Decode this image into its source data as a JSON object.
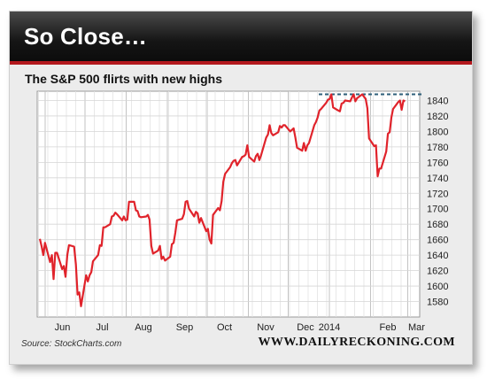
{
  "header": {
    "title": "So Close…"
  },
  "footer": {
    "source": "Source: StockCharts.com",
    "brand": "WWW.DAILYRECKONING.COM"
  },
  "colors": {
    "line": "#e0232b",
    "resistance": "#2e5f7a",
    "accent": "#b3181d"
  },
  "chart_data": {
    "type": "line",
    "title": "The S&P 500 flirts with new highs",
    "xlabel": "",
    "ylabel": "",
    "ylim": [
      1560,
      1852
    ],
    "y_ticks": [
      1580,
      1600,
      1620,
      1640,
      1660,
      1680,
      1700,
      1720,
      1740,
      1760,
      1780,
      1800,
      1820,
      1840
    ],
    "x_ticks": [
      "Jun",
      "Jul",
      "Aug",
      "Sep",
      "Oct",
      "Nov",
      "Dec",
      "2014",
      "Feb",
      "Mar"
    ],
    "grid": true,
    "resistance_level": 1848,
    "series": [
      {
        "name": "",
        "x_start": "2013-05-28",
        "values": [
          1661,
          1652,
          1640,
          1656,
          1631,
          1640,
          1609,
          1643,
          1643,
          1622,
          1626,
          1612,
          1640,
          1653,
          1651,
          1628,
          1589,
          1592,
          1574,
          1614,
          1606,
          1614,
          1618,
          1632,
          1640,
          1653,
          1652,
          1676,
          1676,
          1680,
          1690,
          1691,
          1695,
          1693,
          1685,
          1690,
          1685,
          1686,
          1709,
          1709,
          1698,
          1697,
          1690,
          1689,
          1690,
          1692,
          1686,
          1652,
          1642,
          1646,
          1652,
          1635,
          1638,
          1633,
          1638,
          1654,
          1656,
          1669,
          1685,
          1687,
          1693,
          1709,
          1710,
          1700,
          1690,
          1696,
          1694,
          1682,
          1688,
          1671,
          1674,
          1660,
          1655,
          1692,
          1701,
          1698,
          1710,
          1735,
          1745,
          1754,
          1759,
          1762,
          1763,
          1756,
          1767,
          1768,
          1770,
          1782,
          1767,
          1761,
          1768,
          1771,
          1763,
          1769,
          1792,
          1796,
          1808,
          1798,
          1795,
          1799,
          1807,
          1805,
          1808,
          1808,
          1800,
          1802,
          1804,
          1792,
          1779,
          1775,
          1785,
          1775,
          1782,
          1785,
          1808,
          1812,
          1818,
          1827,
          1829,
          1837,
          1841,
          1842,
          1848,
          1831,
          1827,
          1826,
          1836,
          1837,
          1840,
          1839,
          1844,
          1848,
          1839,
          1843,
          1848,
          1845,
          1842,
          1830,
          1791,
          1781,
          1782,
          1742,
          1752,
          1752,
          1774,
          1797,
          1799,
          1818,
          1829,
          1838,
          1840,
          1828,
          1840,
          1839
        ],
        "values_end": "2014-02-27"
      }
    ]
  }
}
